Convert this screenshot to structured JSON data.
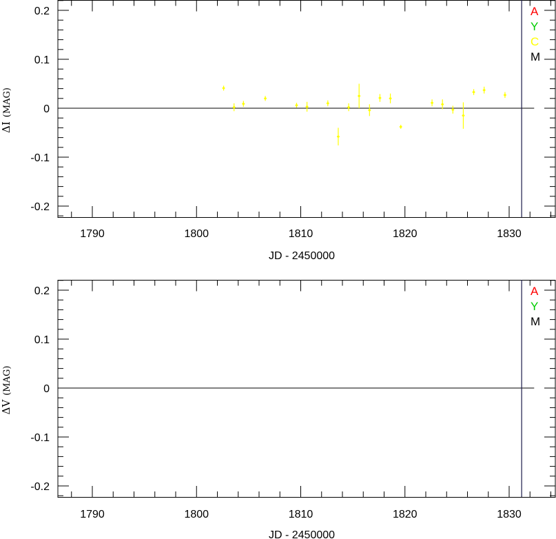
{
  "chart_data": [
    {
      "type": "scatter",
      "title": "",
      "xlabel": "JD - 2450000",
      "ylabel": "ΔI (MAG)",
      "ylabel_main": "ΔI",
      "ylabel_unit": "(MAG)",
      "xlim": [
        1787.3,
        1834.0
      ],
      "ylim": [
        -0.225,
        0.22
      ],
      "xticks": [
        1790,
        1800,
        1810,
        1820,
        1830
      ],
      "yticks": [
        0.2,
        0.1,
        0,
        -0.1,
        -0.2
      ],
      "ytick_labels": [
        "0.2",
        "0.1",
        "0",
        "-0.1",
        "-0.2"
      ],
      "reference_line_y": 0,
      "vertical_line_x": 1831.2,
      "legend": [
        {
          "label": "A",
          "color": "#ff0000"
        },
        {
          "label": "Y",
          "color": "#00cc00"
        },
        {
          "label": "C",
          "color": "#ffff00"
        },
        {
          "label": "M",
          "color": "#000000"
        }
      ],
      "grid": false,
      "series": [
        {
          "color": "#ffff00",
          "points": [
            {
              "x": 1802.6,
              "y": 0.041,
              "err": 0.005
            },
            {
              "x": 1803.6,
              "y": 0.002,
              "err": 0.008
            },
            {
              "x": 1804.5,
              "y": 0.009,
              "err": 0.006
            },
            {
              "x": 1806.6,
              "y": 0.02,
              "err": 0.005
            },
            {
              "x": 1809.6,
              "y": 0.006,
              "err": 0.005
            },
            {
              "x": 1810.6,
              "y": 0.003,
              "err": 0.01
            },
            {
              "x": 1812.6,
              "y": 0.01,
              "err": 0.006
            },
            {
              "x": 1813.6,
              "y": -0.058,
              "err": 0.018
            },
            {
              "x": 1814.6,
              "y": 0.002,
              "err": 0.008
            },
            {
              "x": 1815.6,
              "y": 0.025,
              "err": 0.025
            },
            {
              "x": 1816.6,
              "y": -0.004,
              "err": 0.012
            },
            {
              "x": 1817.6,
              "y": 0.021,
              "err": 0.008
            },
            {
              "x": 1818.6,
              "y": 0.02,
              "err": 0.01
            },
            {
              "x": 1819.6,
              "y": -0.038,
              "err": 0.004
            },
            {
              "x": 1822.6,
              "y": 0.011,
              "err": 0.007
            },
            {
              "x": 1823.6,
              "y": 0.008,
              "err": 0.01
            },
            {
              "x": 1824.6,
              "y": -0.003,
              "err": 0.008
            },
            {
              "x": 1825.6,
              "y": -0.015,
              "err": 0.027
            },
            {
              "x": 1826.6,
              "y": 0.033,
              "err": 0.006
            },
            {
              "x": 1827.6,
              "y": 0.037,
              "err": 0.007
            },
            {
              "x": 1829.6,
              "y": 0.027,
              "err": 0.006
            }
          ]
        }
      ]
    },
    {
      "type": "scatter",
      "title": "",
      "xlabel": "JD - 2450000",
      "ylabel": "ΔV (MAG)",
      "ylabel_main": "ΔV",
      "ylabel_unit": "(MAG)",
      "xlim": [
        1787.3,
        1834.0
      ],
      "ylim": [
        -0.225,
        0.22
      ],
      "xticks": [
        1790,
        1800,
        1810,
        1820,
        1830
      ],
      "yticks": [
        0.2,
        0.1,
        0,
        -0.1,
        -0.2
      ],
      "ytick_labels": [
        "0.2",
        "0.1",
        "0",
        "-0.1",
        "-0.2"
      ],
      "reference_line_y": 0,
      "vertical_line_x": 1831.2,
      "legend": [
        {
          "label": "A",
          "color": "#ff0000"
        },
        {
          "label": "Y",
          "color": "#00cc00"
        },
        {
          "label": "M",
          "color": "#000000"
        }
      ],
      "grid": false,
      "series": []
    }
  ]
}
